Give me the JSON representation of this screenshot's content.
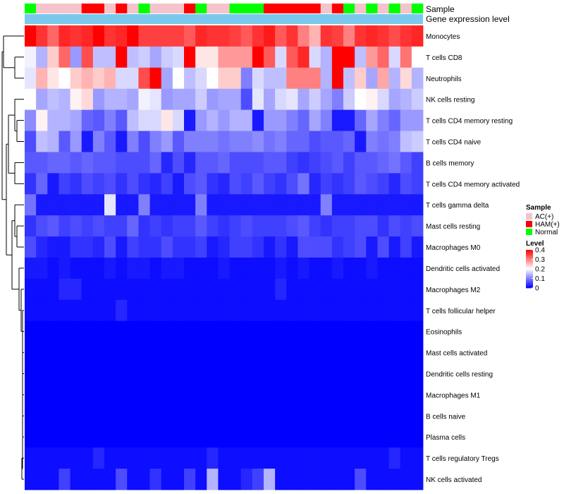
{
  "chart_data": {
    "type": "heatmap",
    "title": "",
    "annotation_labels": {
      "sample": "Sample",
      "expression": "Gene expression level"
    },
    "rows": [
      "Monocytes",
      "T cells CD8",
      "Neutrophils",
      "NK cells resting",
      "T cells CD4 memory resting",
      "T cells CD4 naive",
      "B cells memory",
      "T cells CD4 memory activated",
      "T cells gamma delta",
      "Mast cells resting",
      "Macrophages M0",
      "Dendritic cells activated",
      "Macrophages M2",
      "T cells follicular helper",
      "Eosinophils",
      "Mast cells activated",
      "Dendritic cells resting",
      "Macrophages M1",
      "B cells naive",
      "Plasma cells",
      "T cells regulatory  Tregs",
      "NK cells activated"
    ],
    "sample_groups": [
      "Normal",
      "AC(+)",
      "AC(+)",
      "AC(+)",
      "AC(+)",
      "HAM(+)",
      "HAM(+)",
      "AC(+)",
      "HAM(+)",
      "AC(+)",
      "Normal",
      "AC(+)",
      "AC(+)",
      "AC(+)",
      "HAM(+)",
      "Normal",
      "AC(+)",
      "AC(+)",
      "Normal",
      "Normal",
      "Normal",
      "HAM(+)",
      "HAM(+)",
      "HAM(+)",
      "HAM(+)",
      "HAM(+)",
      "AC(+)",
      "HAM(+)",
      "Normal",
      "AC(+)",
      "Normal",
      "AC(+)",
      "Normal",
      "AC(+)",
      "Normal"
    ],
    "values": [
      [
        0.4,
        0.36,
        0.32,
        0.37,
        0.36,
        0.37,
        0.4,
        0.36,
        0.37,
        0.4,
        0.35,
        0.35,
        0.35,
        0.35,
        0.33,
        0.37,
        0.36,
        0.36,
        0.35,
        0.33,
        0.36,
        0.38,
        0.33,
        0.36,
        0.3,
        0.26,
        0.36,
        0.35,
        0.3,
        0.36,
        0.37,
        0.36,
        0.34,
        0.36,
        0.37
      ],
      [
        0.19,
        0.14,
        0.24,
        0.32,
        0.12,
        0.34,
        0.15,
        0.15,
        0.4,
        0.15,
        0.16,
        0.13,
        0.16,
        0.17,
        0.4,
        0.22,
        0.22,
        0.28,
        0.28,
        0.28,
        0.4,
        0.33,
        0.17,
        0.33,
        0.37,
        0.17,
        0.14,
        0.4,
        0.4,
        0.15,
        0.28,
        0.32,
        0.17,
        0.31,
        0.2
      ],
      [
        0.18,
        0.26,
        0.22,
        0.2,
        0.24,
        0.26,
        0.24,
        0.26,
        0.17,
        0.17,
        0.34,
        0.4,
        0.13,
        0.2,
        0.15,
        0.17,
        0.2,
        0.24,
        0.24,
        0.1,
        0.17,
        0.15,
        0.15,
        0.3,
        0.3,
        0.3,
        0.14,
        0.4,
        0.15,
        0.24,
        0.13,
        0.27,
        0.14,
        0.23,
        0.14
      ],
      [
        0.2,
        0.13,
        0.15,
        0.14,
        0.21,
        0.23,
        0.12,
        0.14,
        0.14,
        0.13,
        0.19,
        0.18,
        0.12,
        0.13,
        0.13,
        0.16,
        0.12,
        0.13,
        0.13,
        0.06,
        0.18,
        0.13,
        0.17,
        0.18,
        0.13,
        0.16,
        0.13,
        0.1,
        0.16,
        0.2,
        0.21,
        0.17,
        0.13,
        0.14,
        0.16
      ],
      [
        0.11,
        0.21,
        0.14,
        0.14,
        0.13,
        0.08,
        0.07,
        0.1,
        0.07,
        0.15,
        0.17,
        0.17,
        0.22,
        0.17,
        0.02,
        0.12,
        0.14,
        0.12,
        0.14,
        0.14,
        0.02,
        0.12,
        0.12,
        0.1,
        0.08,
        0.13,
        0.1,
        0.02,
        0.02,
        0.08,
        0.13,
        0.1,
        0.08,
        0.12,
        0.12
      ],
      [
        0.06,
        0.15,
        0.14,
        0.07,
        0.12,
        0.02,
        0.1,
        0.07,
        0.02,
        0.1,
        0.06,
        0.1,
        0.12,
        0.07,
        0.1,
        0.1,
        0.1,
        0.09,
        0.1,
        0.1,
        0.11,
        0.09,
        0.1,
        0.08,
        0.08,
        0.06,
        0.07,
        0.07,
        0.08,
        0.02,
        0.1,
        0.09,
        0.1,
        0.15,
        0.16
      ],
      [
        0.07,
        0.07,
        0.08,
        0.08,
        0.07,
        0.08,
        0.07,
        0.07,
        0.06,
        0.06,
        0.06,
        0.08,
        0.03,
        0.06,
        0.03,
        0.07,
        0.07,
        0.08,
        0.06,
        0.06,
        0.06,
        0.07,
        0.07,
        0.05,
        0.04,
        0.05,
        0.06,
        0.07,
        0.05,
        0.07,
        0.07,
        0.08,
        0.09,
        0.07,
        0.05
      ],
      [
        0.04,
        0.08,
        0.02,
        0.05,
        0.04,
        0.06,
        0.05,
        0.06,
        0.04,
        0.06,
        0.04,
        0.03,
        0.05,
        0.02,
        0.06,
        0.07,
        0.04,
        0.03,
        0.06,
        0.05,
        0.07,
        0.05,
        0.04,
        0.06,
        0.09,
        0.03,
        0.05,
        0.04,
        0.05,
        0.07,
        0.06,
        0.05,
        0.03,
        0.06,
        0.05
      ],
      [
        0.09,
        0.02,
        0.02,
        0.02,
        0.02,
        0.02,
        0.02,
        0.18,
        0.02,
        0.02,
        0.1,
        0.02,
        0.02,
        0.02,
        0.02,
        0.1,
        0.02,
        0.02,
        0.02,
        0.02,
        0.02,
        0.02,
        0.02,
        0.02,
        0.02,
        0.02,
        0.1,
        0.02,
        0.02,
        0.02,
        0.02,
        0.02,
        0.02,
        0.02,
        0.02
      ],
      [
        0.04,
        0.06,
        0.07,
        0.05,
        0.06,
        0.05,
        0.06,
        0.05,
        0.05,
        0.08,
        0.04,
        0.05,
        0.04,
        0.05,
        0.05,
        0.07,
        0.05,
        0.04,
        0.05,
        0.06,
        0.05,
        0.05,
        0.05,
        0.06,
        0.07,
        0.05,
        0.04,
        0.05,
        0.05,
        0.06,
        0.06,
        0.04,
        0.06,
        0.05,
        0.06
      ],
      [
        0.06,
        0.03,
        0.02,
        0.02,
        0.04,
        0.04,
        0.03,
        0.06,
        0.02,
        0.05,
        0.04,
        0.04,
        0.06,
        0.04,
        0.04,
        0.05,
        0.02,
        0.03,
        0.05,
        0.05,
        0.04,
        0.02,
        0.04,
        0.02,
        0.06,
        0.06,
        0.06,
        0.04,
        0.05,
        0.06,
        0.02,
        0.06,
        0.02,
        0.05,
        0.02
      ],
      [
        0.02,
        0.02,
        0.01,
        0.02,
        0.01,
        0.01,
        0.01,
        0.02,
        0.01,
        0.02,
        0.02,
        0.01,
        0.02,
        0.02,
        0.01,
        0.01,
        0.01,
        0.02,
        0.01,
        0.01,
        0.01,
        0.01,
        0.02,
        0.01,
        0.02,
        0.01,
        0.01,
        0.02,
        0.01,
        0.01,
        0.02,
        0.01,
        0.01,
        0.01,
        0.01
      ],
      [
        0.01,
        0.01,
        0.01,
        0.03,
        0.03,
        0.01,
        0.01,
        0.01,
        0.01,
        0.01,
        0.01,
        0.01,
        0.01,
        0.01,
        0.01,
        0.01,
        0.01,
        0.01,
        0.01,
        0.01,
        0.01,
        0.01,
        0.03,
        0.01,
        0.01,
        0.01,
        0.01,
        0.01,
        0.01,
        0.01,
        0.01,
        0.01,
        0.01,
        0.01,
        0.01
      ],
      [
        0.01,
        0.01,
        0.01,
        0.01,
        0.01,
        0.01,
        0.01,
        0.01,
        0.03,
        0.01,
        0.01,
        0.01,
        0.01,
        0.01,
        0.01,
        0.01,
        0.01,
        0.01,
        0.01,
        0.01,
        0.01,
        0.01,
        0.01,
        0.01,
        0.01,
        0.01,
        0.01,
        0.01,
        0.01,
        0.01,
        0.01,
        0.01,
        0.01,
        0.01,
        0.01
      ],
      [
        0,
        0,
        0,
        0,
        0,
        0,
        0,
        0,
        0,
        0,
        0,
        0,
        0,
        0,
        0,
        0,
        0,
        0,
        0,
        0,
        0,
        0,
        0,
        0,
        0,
        0,
        0,
        0,
        0,
        0,
        0,
        0,
        0,
        0,
        0
      ],
      [
        0,
        0,
        0,
        0,
        0,
        0,
        0,
        0,
        0,
        0,
        0,
        0,
        0,
        0,
        0,
        0,
        0,
        0,
        0,
        0,
        0,
        0,
        0,
        0,
        0,
        0,
        0,
        0,
        0,
        0,
        0,
        0,
        0,
        0,
        0
      ],
      [
        0,
        0,
        0,
        0,
        0,
        0,
        0,
        0,
        0,
        0,
        0,
        0,
        0,
        0,
        0,
        0,
        0,
        0,
        0,
        0,
        0,
        0,
        0,
        0,
        0,
        0,
        0,
        0,
        0,
        0,
        0,
        0,
        0,
        0,
        0
      ],
      [
        0,
        0,
        0,
        0,
        0,
        0,
        0,
        0,
        0,
        0,
        0,
        0,
        0,
        0,
        0,
        0,
        0,
        0,
        0,
        0,
        0,
        0,
        0,
        0,
        0,
        0,
        0,
        0,
        0,
        0,
        0,
        0,
        0,
        0,
        0
      ],
      [
        0,
        0,
        0,
        0,
        0,
        0,
        0,
        0,
        0,
        0,
        0,
        0,
        0,
        0,
        0,
        0,
        0,
        0,
        0,
        0,
        0,
        0,
        0,
        0,
        0,
        0,
        0,
        0,
        0,
        0,
        0,
        0,
        0,
        0,
        0
      ],
      [
        0,
        0,
        0,
        0,
        0,
        0,
        0,
        0,
        0,
        0,
        0,
        0,
        0,
        0,
        0,
        0,
        0,
        0,
        0,
        0,
        0,
        0,
        0,
        0,
        0,
        0,
        0,
        0,
        0,
        0,
        0,
        0,
        0,
        0,
        0
      ],
      [
        0.01,
        0.01,
        0.01,
        0.01,
        0.01,
        0.01,
        0.03,
        0.01,
        0.01,
        0.01,
        0.01,
        0.01,
        0.01,
        0.01,
        0.01,
        0.01,
        0.03,
        0.01,
        0.01,
        0.01,
        0.01,
        0.01,
        0.01,
        0.01,
        0.01,
        0.01,
        0.01,
        0.01,
        0.01,
        0.01,
        0.01,
        0.01,
        0.03,
        0.01,
        0.01
      ],
      [
        0.01,
        0.01,
        0.01,
        0.05,
        0.01,
        0.01,
        0.01,
        0.01,
        0.06,
        0.01,
        0.01,
        0.04,
        0.01,
        0.01,
        0.05,
        0.01,
        0.14,
        0.01,
        0.01,
        0.03,
        0.05,
        0.14,
        0.01,
        0.01,
        0.01,
        0.01,
        0.01,
        0.01,
        0.01,
        0.06,
        0.01,
        0.01,
        0.01,
        0.01,
        0.01
      ]
    ],
    "legend": {
      "sample_title": "Sample",
      "sample_items": [
        {
          "label": "AC(+)",
          "color": "#f5c3cc"
        },
        {
          "label": "HAM(+)",
          "color": "#ff0000"
        },
        {
          "label": "Normal",
          "color": "#00ff00"
        }
      ],
      "level_title": "Level",
      "level_ticks": [
        "0.4",
        "0.3",
        "0.2",
        "0.1",
        "0"
      ],
      "level_range": [
        0,
        0.4
      ],
      "placement": "right"
    },
    "colors": {
      "low": "#0000ff",
      "mid": "#ffffff",
      "high": "#ff0000",
      "expression_bar": "#7ac9ec"
    }
  }
}
